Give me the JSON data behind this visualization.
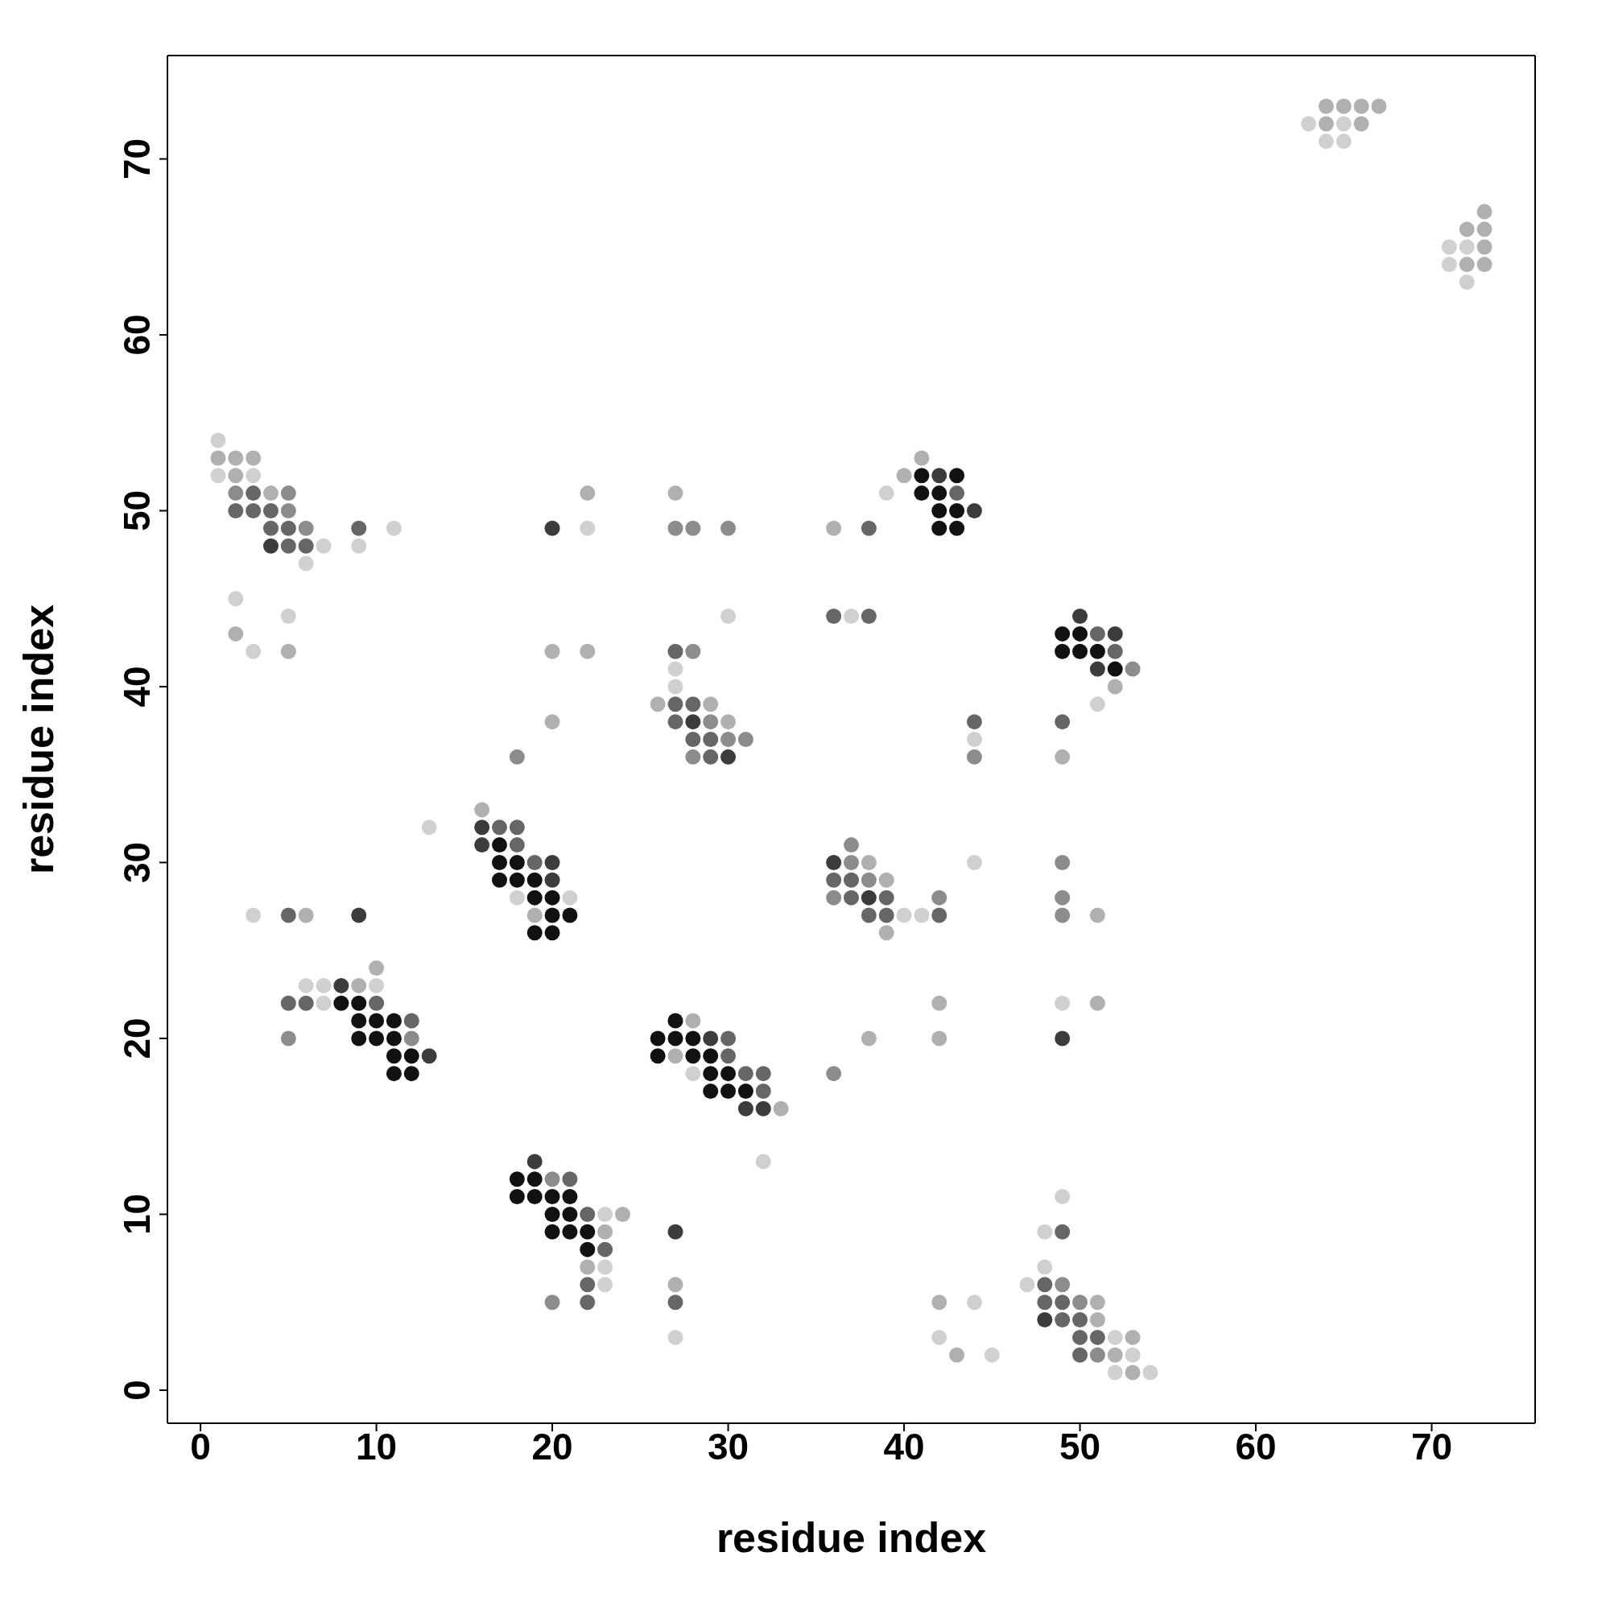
{
  "chart_data": {
    "type": "scatter",
    "xlabel": "residue index",
    "ylabel": "residue index",
    "xlim": [
      -1.88,
      75.88
    ],
    "ylim": [
      -1.88,
      75.88
    ],
    "xticks": [
      0,
      10,
      20,
      30,
      40,
      50,
      60,
      70
    ],
    "yticks": [
      0,
      10,
      20,
      30,
      40,
      50,
      60,
      70
    ],
    "marker": "circle",
    "series": [
      {
        "color": "#111111",
        "x": [
          41,
          43,
          41,
          42,
          42,
          43,
          42,
          43,
          49,
          50,
          49,
          50,
          51,
          52,
          17,
          17,
          18,
          17,
          18,
          19,
          19,
          20,
          20,
          21,
          19,
          20,
          8,
          9,
          9,
          10,
          11,
          27,
          9,
          10,
          11,
          26,
          27,
          28,
          11,
          12,
          26,
          28,
          29,
          11,
          12,
          29,
          30,
          29,
          30,
          31,
          18,
          19,
          18,
          19,
          20,
          21,
          20,
          21,
          20,
          21,
          22,
          22
        ],
        "values": [
          52,
          52,
          51,
          51,
          50,
          50,
          49,
          49,
          43,
          43,
          42,
          42,
          42,
          41,
          31,
          30,
          30,
          29,
          29,
          29,
          28,
          28,
          27,
          27,
          26,
          26,
          22,
          22,
          21,
          21,
          21,
          21,
          20,
          20,
          20,
          20,
          20,
          20,
          19,
          19,
          19,
          19,
          19,
          18,
          18,
          18,
          18,
          17,
          17,
          17,
          12,
          12,
          11,
          11,
          11,
          11,
          10,
          10,
          9,
          9,
          9,
          8
        ]
      },
      {
        "color": "#3c3c3c",
        "x": [
          42,
          44,
          4,
          20,
          50,
          52,
          51,
          28,
          30,
          16,
          16,
          20,
          36,
          20,
          38,
          9,
          8,
          29,
          49,
          13,
          31,
          32,
          19,
          27,
          48
        ],
        "values": [
          52,
          50,
          48,
          49,
          44,
          43,
          41,
          38,
          36,
          32,
          31,
          30,
          30,
          29,
          28,
          27,
          23,
          20,
          20,
          19,
          16,
          16,
          13,
          9,
          4
        ]
      },
      {
        "color": "#666666",
        "x": [
          3,
          43,
          2,
          3,
          4,
          4,
          5,
          9,
          38,
          5,
          6,
          36,
          38,
          51,
          27,
          52,
          27,
          28,
          27,
          44,
          49,
          28,
          29,
          29,
          17,
          18,
          18,
          19,
          36,
          37,
          37,
          39,
          5,
          38,
          39,
          42,
          5,
          6,
          10,
          12,
          30,
          30,
          31,
          32,
          32,
          21,
          22,
          23,
          22,
          48,
          22,
          27,
          48,
          49,
          49,
          50,
          50,
          51,
          50,
          49
        ],
        "values": [
          51,
          51,
          50,
          50,
          50,
          49,
          49,
          49,
          49,
          48,
          48,
          44,
          44,
          43,
          42,
          42,
          39,
          39,
          38,
          38,
          38,
          37,
          37,
          36,
          32,
          32,
          31,
          30,
          29,
          29,
          28,
          28,
          27,
          27,
          27,
          27,
          22,
          22,
          22,
          21,
          20,
          19,
          18,
          18,
          17,
          12,
          10,
          8,
          6,
          6,
          5,
          5,
          5,
          5,
          4,
          4,
          3,
          3,
          2,
          9
        ]
      },
      {
        "color": "#8c8c8c",
        "x": [
          2,
          5,
          5,
          6,
          27,
          28,
          30,
          28,
          53,
          29,
          30,
          31,
          28,
          44,
          18,
          37,
          37,
          49,
          38,
          36,
          42,
          49,
          49,
          5,
          12,
          36,
          20,
          49,
          20,
          50,
          51
        ],
        "values": [
          51,
          51,
          50,
          49,
          49,
          49,
          49,
          42,
          41,
          38,
          37,
          37,
          36,
          36,
          36,
          31,
          30,
          30,
          29,
          28,
          28,
          28,
          27,
          20,
          20,
          18,
          12,
          6,
          5,
          5,
          2
        ]
      },
      {
        "color": "#b0b0b0",
        "x": [
          64,
          65,
          66,
          67,
          64,
          66,
          73,
          72,
          73,
          73,
          72,
          73,
          1,
          2,
          3,
          41,
          2,
          40,
          4,
          22,
          27,
          36,
          2,
          5,
          20,
          22,
          52,
          26,
          29,
          30,
          20,
          49,
          16,
          38,
          39,
          6,
          19,
          51,
          39,
          10,
          9,
          42,
          51,
          28,
          38,
          42,
          27,
          33,
          24,
          23,
          22,
          27,
          42,
          51,
          51,
          53,
          43,
          52,
          53
        ],
        "values": [
          73,
          73,
          73,
          73,
          72,
          72,
          67,
          66,
          66,
          65,
          64,
          64,
          53,
          53,
          53,
          53,
          52,
          52,
          51,
          51,
          51,
          49,
          43,
          42,
          42,
          42,
          40,
          39,
          39,
          38,
          38,
          36,
          33,
          30,
          29,
          27,
          27,
          27,
          26,
          24,
          23,
          22,
          22,
          21,
          20,
          20,
          19,
          16,
          10,
          9,
          7,
          6,
          5,
          5,
          4,
          3,
          2,
          2,
          1
        ]
      },
      {
        "color": "#d0d0d0",
        "x": [
          63,
          65,
          64,
          65,
          71,
          72,
          71,
          72,
          1,
          1,
          3,
          39,
          11,
          22,
          7,
          9,
          6,
          2,
          5,
          30,
          37,
          3,
          27,
          27,
          51,
          44,
          13,
          44,
          18,
          21,
          3,
          40,
          41,
          6,
          7,
          10,
          7,
          49,
          28,
          32,
          49,
          23,
          48,
          23,
          48,
          23,
          47,
          44,
          27,
          42,
          52,
          45,
          53,
          52,
          54
        ],
        "values": [
          72,
          72,
          71,
          71,
          65,
          65,
          64,
          63,
          54,
          52,
          52,
          51,
          49,
          49,
          48,
          48,
          47,
          45,
          44,
          44,
          44,
          42,
          41,
          40,
          39,
          37,
          32,
          30,
          28,
          28,
          27,
          27,
          27,
          23,
          23,
          23,
          22,
          22,
          18,
          13,
          11,
          10,
          9,
          7,
          7,
          6,
          6,
          5,
          3,
          3,
          3,
          2,
          2,
          1,
          1
        ]
      }
    ]
  }
}
